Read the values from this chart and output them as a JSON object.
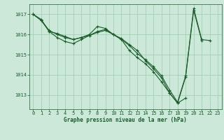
{
  "background_color": "#cce8d8",
  "grid_color": "#99ccaa",
  "line_color": "#1a5c2a",
  "title": "Graphe pression niveau de la mer (hPa)",
  "yticks": [
    1013,
    1014,
    1015,
    1016,
    1017
  ],
  "ylim": [
    1012.3,
    1017.5
  ],
  "xlim": [
    -0.5,
    23.5
  ],
  "series": [
    {
      "x": [
        0,
        1,
        2,
        3,
        4,
        5,
        6,
        7,
        8,
        9,
        10,
        11,
        12,
        13,
        14,
        15,
        16,
        17,
        18,
        19,
        20,
        21
      ],
      "y": [
        1017.0,
        1016.7,
        1016.2,
        1016.0,
        1015.85,
        1015.75,
        1015.85,
        1016.0,
        1016.4,
        1016.3,
        1016.0,
        1015.8,
        1015.5,
        1015.2,
        1014.7,
        1014.3,
        1013.85,
        1013.1,
        1012.6,
        1013.9,
        1017.2,
        1015.7
      ]
    },
    {
      "x": [
        0,
        1,
        2,
        3,
        4,
        5,
        6,
        7,
        8,
        9,
        10,
        11,
        12,
        13,
        14,
        15,
        16,
        17,
        18,
        19
      ],
      "y": [
        1017.0,
        1016.7,
        1016.15,
        1015.85,
        1015.65,
        1015.55,
        1015.75,
        1015.95,
        1016.15,
        1016.25,
        1016.0,
        1015.75,
        1015.2,
        1014.85,
        1014.55,
        1014.15,
        1013.65,
        1013.1,
        1012.6,
        1012.85
      ]
    },
    {
      "x": [
        0,
        1,
        2,
        3,
        4,
        5,
        6,
        7,
        8,
        9,
        10,
        11,
        12,
        13,
        14,
        15,
        16,
        17,
        18,
        19,
        20,
        21,
        22,
        23
      ],
      "y": [
        1017.0,
        1016.75,
        1016.15,
        1016.05,
        1015.9,
        1015.75,
        1015.85,
        1015.95,
        1016.1,
        1016.2,
        1016.0,
        1015.75,
        1015.45,
        1015.05,
        1014.75,
        1014.4,
        1013.95,
        1013.25,
        1012.65,
        1013.95,
        1017.3,
        1015.75,
        1015.7,
        null
      ]
    }
  ]
}
